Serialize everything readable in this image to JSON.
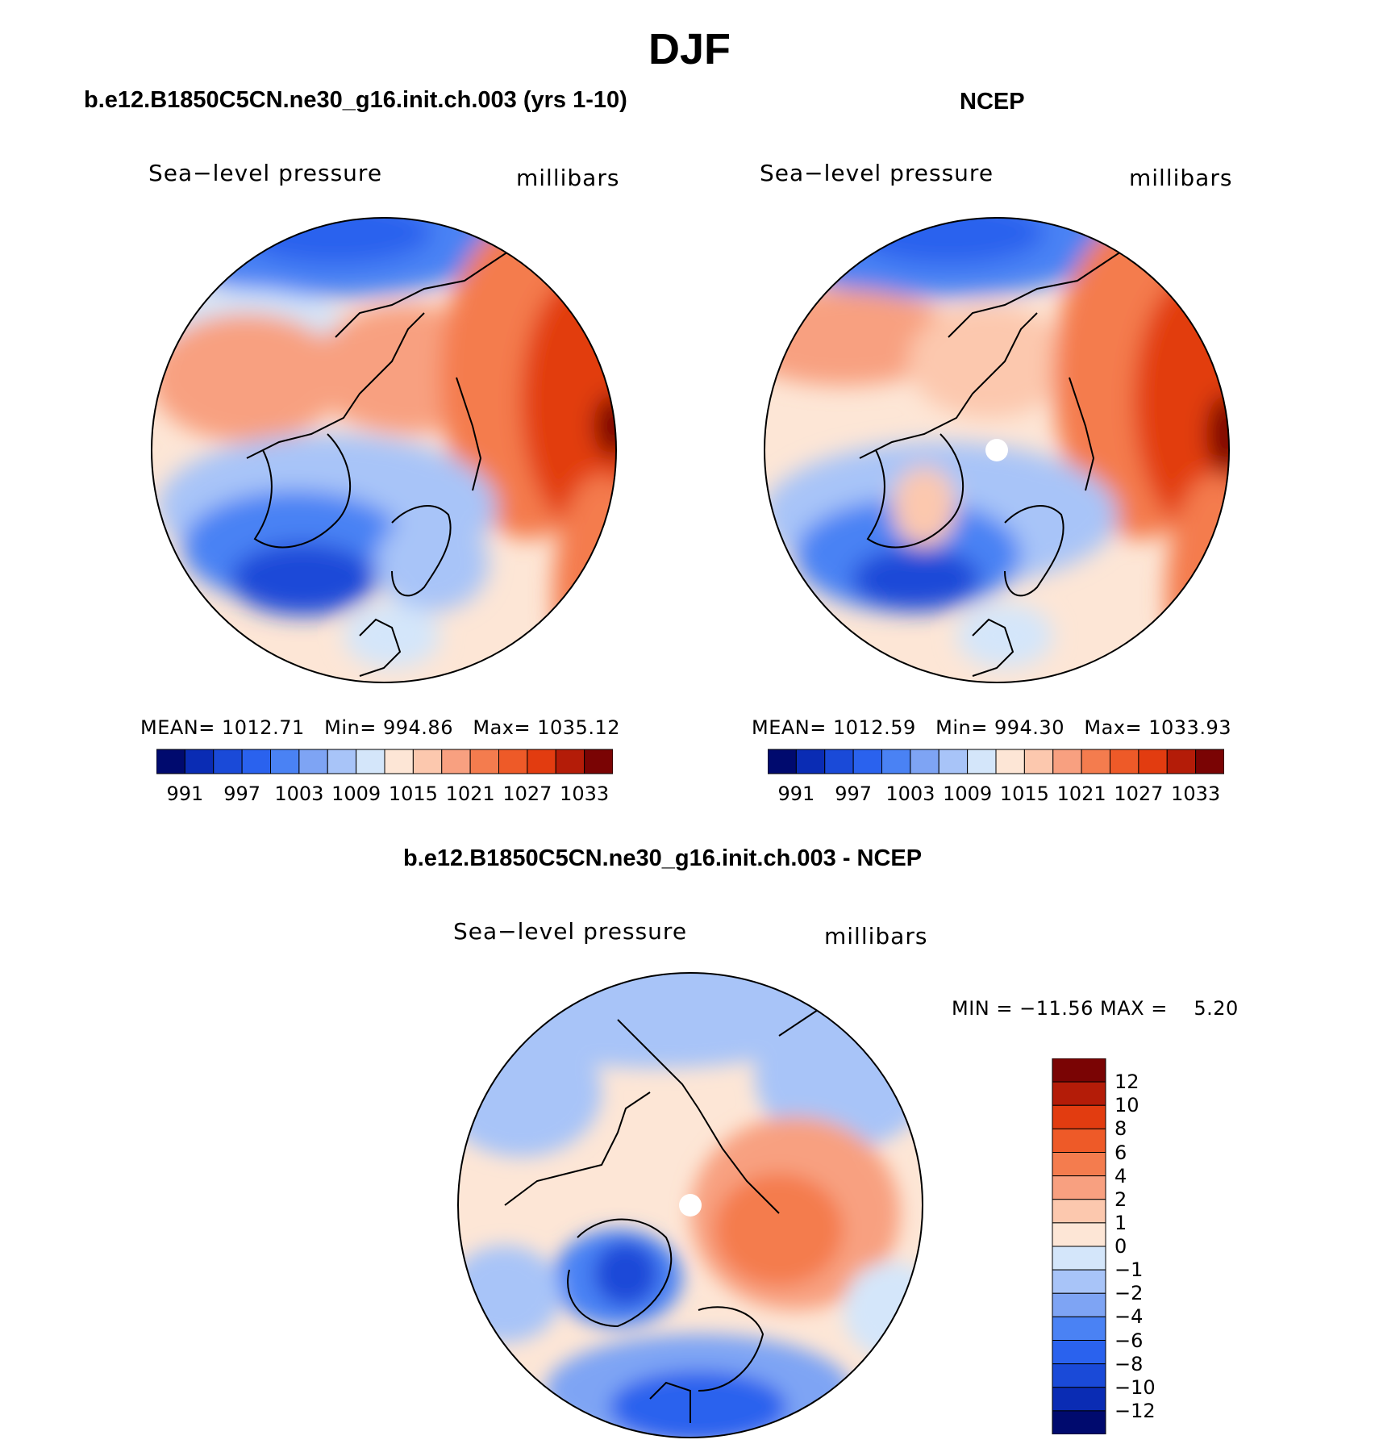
{
  "title": "DJF",
  "panels": [
    {
      "title": "b.e12.B1850C5CN.ne30_g16.init.ch.003 (yrs 1-10)",
      "variable": "Sea−level pressure",
      "units": "millibars",
      "stats": {
        "mean_label": "MEAN=",
        "mean": "1012.71",
        "min_label": "Min=",
        "min": "994.86",
        "max_label": "Max=",
        "max": "1035.12"
      },
      "colorbar_labels": [
        "991",
        "997",
        "1003",
        "1009",
        "1015",
        "1021",
        "1027",
        "1033"
      ]
    },
    {
      "title": "NCEP",
      "variable": "Sea−level pressure",
      "units": "millibars",
      "stats": {
        "mean_label": "MEAN=",
        "mean": "1012.59",
        "min_label": "Min=",
        "min": "994.30",
        "max_label": "Max=",
        "max": "1033.93"
      },
      "colorbar_labels": [
        "991",
        "997",
        "1003",
        "1009",
        "1015",
        "1021",
        "1027",
        "1033"
      ]
    },
    {
      "title": "b.e12.B1850C5CN.ne30_g16.init.ch.003 - NCEP",
      "variable": "Sea−level pressure",
      "units": "millibars",
      "stats": {
        "minmax": "MIN = −11.56 MAX =    5.20"
      },
      "colorbar_labels": [
        "12",
        "10",
        "8",
        "6",
        "4",
        "2",
        "1",
        "0",
        "−1",
        "−2",
        "−4",
        "−6",
        "−8",
        "−10",
        "−12"
      ]
    }
  ],
  "colors": {
    "abs_scale": [
      "#000a6e",
      "#0a2cb4",
      "#1a4ad8",
      "#2a62ee",
      "#4a82f4",
      "#7ea4f4",
      "#a8c4f8",
      "#d4e6fa",
      "#fde6d6",
      "#fcc8ae",
      "#f8a080",
      "#f47c4e",
      "#ee5a28",
      "#e23c10",
      "#b41c08",
      "#7a0404"
    ],
    "diff_scale": [
      "#000a6e",
      "#0a2cb4",
      "#1a4ad8",
      "#2a62ee",
      "#4a82f4",
      "#7ea4f4",
      "#a8c4f8",
      "#d4e6fa",
      "#fde6d6",
      "#fcc8ae",
      "#f8a080",
      "#f47c4e",
      "#ee5a28",
      "#e23c10",
      "#b41c08",
      "#7a0404"
    ]
  }
}
